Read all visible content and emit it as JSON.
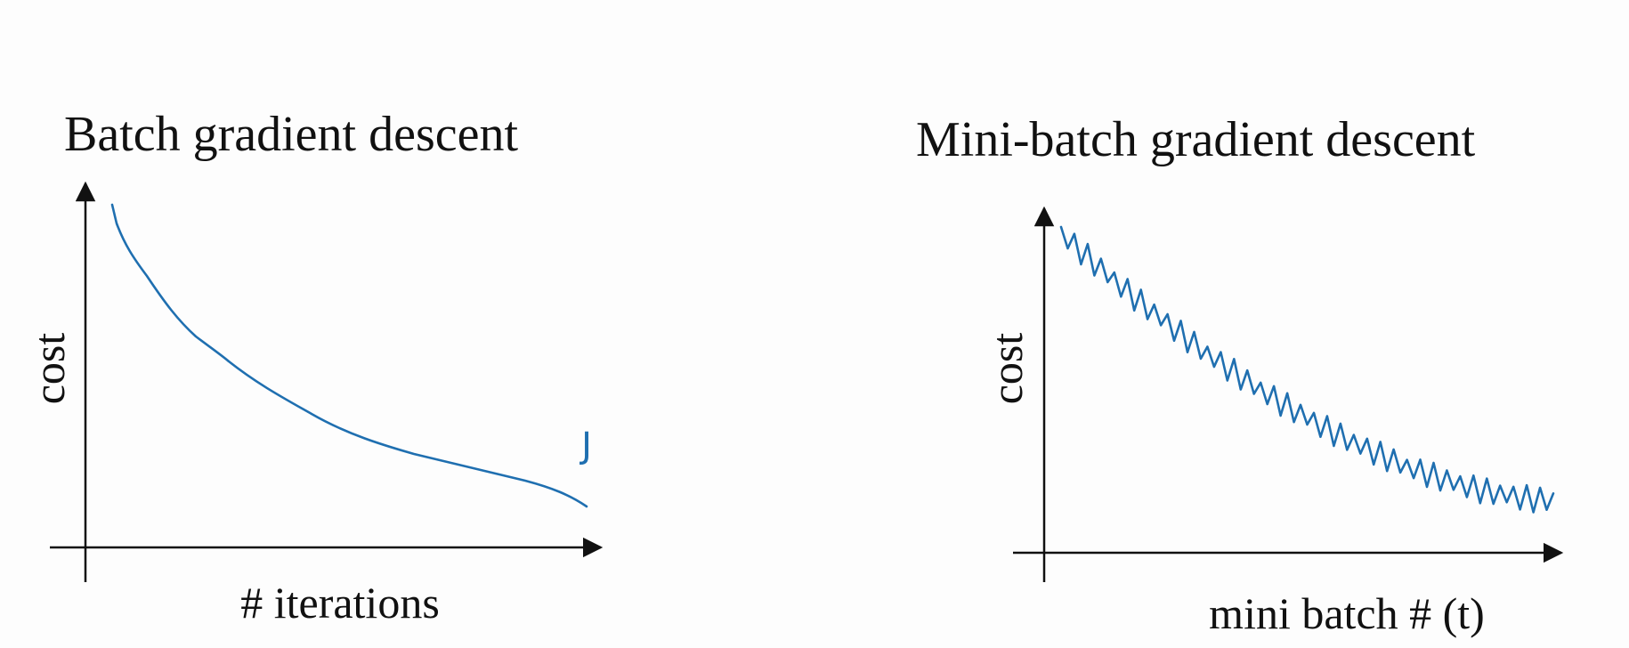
{
  "left": {
    "title": "Batch gradient descent",
    "y_label": "cost",
    "x_label": "# iterations",
    "annotation": "J"
  },
  "right": {
    "title": "Mini-batch gradient descent",
    "y_label": "cost",
    "x_label": "mini batch # (t)"
  }
}
